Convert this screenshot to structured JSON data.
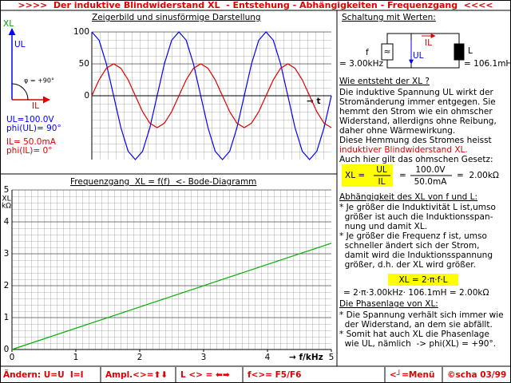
{
  "header": {
    "title": ">>>>  Der induktive Blindwiderstand XL  - Entstehung - Abhängigkeiten - Frequenzgang  <<<<"
  },
  "phasor": {
    "axis_label": "XL",
    "u_label": "UL",
    "i_label": "IL",
    "angle_label": "φ = +90°",
    "u_readouts": [
      "UL=100.0V",
      "phi(UL)= 90°"
    ],
    "i_readouts": [
      "IL= 50.0mA",
      "phi(IL)= 0°"
    ]
  },
  "chart_data": [
    {
      "type": "line",
      "title": "Zeigerbild und sinusförmige Darstellung",
      "categories": [
        null,
        null,
        null,
        null,
        null,
        null,
        null,
        null,
        null,
        null,
        null,
        null,
        null,
        null,
        null,
        null,
        null,
        null,
        null,
        null,
        null,
        null,
        null,
        null,
        null,
        null,
        null,
        null,
        null,
        null,
        null,
        null,
        null,
        null
      ],
      "series": [
        {
          "color": "#0000ff",
          "values": [
            100,
            87,
            50,
            0,
            -50,
            -87,
            -100,
            -87,
            -50,
            0,
            50,
            87,
            100,
            87,
            50,
            0,
            -50,
            -87,
            -100,
            -87,
            -50,
            0,
            50,
            87,
            100,
            87,
            50,
            0,
            -50,
            -87,
            -100,
            -87,
            -50,
            0
          ]
        },
        {
          "color": "#e00000",
          "values": [
            0,
            25,
            43,
            50,
            43,
            25,
            0,
            -25,
            -43,
            -50,
            -43,
            -25,
            0,
            25,
            43,
            50,
            43,
            25,
            0,
            -25,
            -43,
            -50,
            -43,
            -25,
            0,
            25,
            43,
            50,
            43,
            25,
            0,
            -25,
            -43,
            -50
          ]
        }
      ],
      "ylim": [
        -100,
        100
      ],
      "yticks": [
        0,
        50,
        100
      ],
      "x_label": "→ t",
      "grid": true
    },
    {
      "type": "line",
      "title": "Frequenzgang  XL = f(f)  <- Bode-Diagramm",
      "x": [
        0,
        5
      ],
      "series": [
        {
          "color": "#00b000",
          "values": [
            0,
            3.33
          ]
        }
      ],
      "xlim": [
        0,
        5
      ],
      "ylim": [
        0,
        5
      ],
      "xticks": [
        0,
        1,
        2,
        3,
        4,
        5
      ],
      "yticks": [
        0,
        1,
        2,
        3,
        4,
        5
      ],
      "x_label": "→ f/kHz",
      "y_label": "XL",
      "y_unit": "kΩ",
      "grid": true
    }
  ],
  "circuit": {
    "heading": "Schaltung mit Werten:",
    "source": "f",
    "source_symbol": "≈",
    "f_value": "= 3.00kHz",
    "current": "IL",
    "voltage": "UL",
    "inductor": "L",
    "l_value": "= 106.1mH"
  },
  "explanation": {
    "heading": "Wie entsteht der XL ?",
    "lines": [
      "Die induktive Spannung UL wirkt der",
      "Stromänderung immer entgegen. Sie",
      "hemmt den Strom wie ein ohmscher",
      "Widerstand, allerdigns ohne Reibung,",
      "daher ohne Wärmewirkung.",
      "Diese Hemmung des Stromes heisst"
    ],
    "highlight": "induktiver Blindwiderstand XL.",
    "law": "Auch hier gilt das ohmschen Gesetz:"
  },
  "formula": {
    "lhs": "XL =",
    "num": "UL",
    "den": "IL",
    "eq": "=",
    "num2": "100.0V",
    "den2": "50.0mA",
    "result": "=  2.00kΩ"
  },
  "dependency": {
    "heading": "Abhängigkeit des XL von f und L:",
    "lines": [
      "* Je größer die Induktivität L ist,umso",
      "  größer ist auch die Induktionsspan-",
      "  nung und damit XL.",
      "* Je größer die Frequenz f ist, umso",
      "  schneller ändert sich der Strom,",
      "  damit wird die Induktionsspannung",
      "  größer, d.h. der XL wird größer."
    ],
    "formula": "XL = 2·π·f·L",
    "calc": "= 2·π·3.00kHz· 106.1mH = 2.00kΩ"
  },
  "phase": {
    "heading": "Die Phasenlage von XL:",
    "lines": [
      "* Die Spannung verhält sich immer wie",
      "  der Widerstand, an dem sie abfällt.",
      "* Somit hat auch XL die Phasenlage",
      "  wie UL, nämlich  -> phi(XL) = +90°."
    ]
  },
  "status_bar": [
    "Ändern: U=U  I=I",
    "Ampl.<>=⬆⬇",
    "L <> = ⬅➡",
    "f<>= F5/F6",
    "<┘=Menü",
    "©scha 03/99"
  ]
}
